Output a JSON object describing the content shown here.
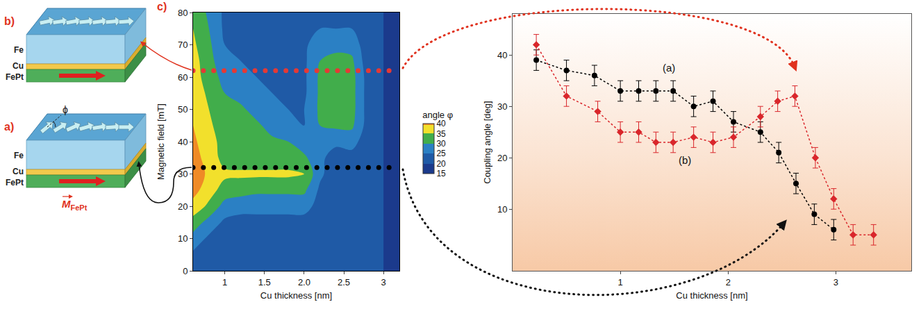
{
  "chart_data": [
    {
      "type": "contour",
      "panel_label": "c)",
      "x_label": "Cu thickness [nm]",
      "y_label": "Magnetic field [mT]",
      "x": [
        0.6,
        0.8,
        1.0,
        1.2,
        1.4,
        1.6,
        1.8,
        2.0,
        2.2,
        2.4,
        2.6,
        2.8,
        3.0,
        3.2
      ],
      "y": [
        0,
        5,
        10,
        15,
        20,
        25,
        30,
        35,
        40,
        45,
        50,
        55,
        60,
        65,
        70,
        75,
        80
      ],
      "z": [
        [
          22,
          22,
          22,
          22,
          22,
          22,
          22,
          22,
          22,
          22,
          22,
          21,
          20,
          20
        ],
        [
          24,
          22,
          22,
          22,
          22,
          22,
          22,
          22,
          22,
          22,
          22,
          21,
          20,
          20
        ],
        [
          28,
          24,
          22,
          22,
          22,
          22,
          22,
          22,
          22,
          22,
          22,
          21,
          20,
          20
        ],
        [
          33,
          28,
          24,
          23,
          23,
          23,
          23,
          23,
          22,
          22,
          22,
          21,
          20,
          20
        ],
        [
          38,
          34,
          28,
          27,
          27,
          27,
          27,
          27,
          23,
          22,
          22,
          21,
          20,
          20
        ],
        [
          42,
          37,
          33,
          32,
          31,
          31,
          31,
          31,
          24,
          22,
          22,
          21,
          20,
          20
        ],
        [
          43,
          39,
          36,
          36,
          36,
          36,
          36,
          35,
          26,
          22,
          22,
          21,
          20,
          20
        ],
        [
          42,
          38,
          33,
          32,
          32,
          32,
          32,
          31,
          26,
          23,
          23,
          21,
          20,
          20
        ],
        [
          41,
          37,
          33,
          32,
          32,
          31,
          30,
          27,
          27,
          26,
          27,
          22,
          20,
          20
        ],
        [
          40,
          36,
          32,
          32,
          31,
          28,
          26,
          25,
          30,
          31,
          31,
          23,
          20,
          20
        ],
        [
          39,
          35,
          31,
          31,
          28,
          26,
          25,
          25,
          31,
          32,
          32,
          23,
          20,
          20
        ],
        [
          38,
          34,
          30,
          28,
          26,
          25,
          24,
          24,
          31,
          32,
          32,
          23,
          20,
          20
        ],
        [
          37,
          33,
          28,
          26,
          25,
          24,
          24,
          24,
          31,
          32,
          32,
          23,
          20,
          20
        ],
        [
          37,
          32,
          26,
          25,
          24,
          24,
          24,
          24,
          30,
          31,
          31,
          22,
          20,
          20
        ],
        [
          36,
          31,
          25,
          24,
          24,
          24,
          24,
          24,
          28,
          29,
          28,
          22,
          20,
          20
        ],
        [
          35,
          30,
          24,
          23,
          23,
          23,
          23,
          23,
          25,
          25,
          25,
          22,
          20,
          20
        ],
        [
          34,
          29,
          24,
          23,
          23,
          23,
          23,
          23,
          24,
          24,
          24,
          22,
          20,
          20
        ]
      ],
      "colorbar_title": "angle φ",
      "colorbar_range": [
        15,
        40
      ],
      "colorbar_ticks": [
        15,
        20,
        25,
        30,
        35,
        40
      ],
      "colors": [
        "#1b3a8c",
        "#1f5aa6",
        "#2b80c4",
        "#41ad4b",
        "#f2e02c",
        "#ef8a26"
      ],
      "xlim": [
        0.6,
        3.2
      ],
      "xticks": [
        1,
        1.5,
        {
          "value": 2,
          "label": "2.0"
        },
        2.5,
        3
      ],
      "ylim": [
        0,
        80
      ],
      "yticks": [
        0,
        10,
        20,
        30,
        40,
        50,
        60,
        70,
        80
      ],
      "series": [
        {
          "type": "scatter",
          "marker": "circle",
          "color": "#e53935",
          "x": [
            0.6,
            0.73,
            0.86,
            0.99,
            1.12,
            1.25,
            1.38,
            1.51,
            1.64,
            1.77,
            1.9,
            2.03,
            2.16,
            2.29,
            2.42,
            2.55,
            2.68,
            2.81,
            2.94,
            3.07
          ],
          "y": [
            62,
            62,
            62,
            62,
            62,
            62,
            62,
            62,
            62,
            62,
            62,
            62,
            62,
            62,
            62,
            62,
            62,
            62,
            62,
            62
          ]
        },
        {
          "type": "scatter",
          "marker": "circle",
          "color": "#000000",
          "x": [
            0.6,
            0.73,
            0.86,
            0.99,
            1.12,
            1.25,
            1.38,
            1.51,
            1.64,
            1.77,
            1.9,
            2.03,
            2.16,
            2.29,
            2.42,
            2.55,
            2.68,
            2.81,
            2.94,
            3.07
          ],
          "y": [
            32,
            32,
            32,
            32,
            32,
            32,
            32,
            32,
            32,
            32,
            32,
            32,
            32,
            32,
            32,
            32,
            32,
            32,
            32,
            32
          ]
        }
      ]
    },
    {
      "type": "line",
      "x_label": "Cu thickness [nm]",
      "y_label": "Coupling angle [deg]",
      "xlim": [
        0,
        3.7
      ],
      "xticks": [
        1,
        2,
        3
      ],
      "ylim": [
        -2,
        48
      ],
      "yticks": [
        10,
        20,
        30,
        40
      ],
      "series": [
        {
          "color": "#000000",
          "marker": "circle",
          "line_style": "dotted",
          "x": [
            0.22,
            0.5,
            0.76,
            1.0,
            1.17,
            1.33,
            1.49,
            1.68,
            1.86,
            2.05,
            2.3,
            2.47,
            2.63,
            2.8,
            2.98
          ],
          "values": [
            39,
            37,
            36,
            33,
            33,
            33,
            33,
            30,
            31,
            27,
            25,
            21,
            15,
            9,
            6
          ],
          "errors": [
            2,
            2,
            2,
            2,
            2,
            2,
            2,
            2,
            2,
            2,
            2,
            2,
            2,
            2,
            2
          ]
        },
        {
          "color": "#d9262b",
          "marker": "diamond",
          "line_style": "dotted",
          "x": [
            0.22,
            0.5,
            0.79,
            1.0,
            1.17,
            1.33,
            1.49,
            1.68,
            1.86,
            2.05,
            2.3,
            2.46,
            2.62,
            2.81,
            2.98,
            3.16,
            3.35
          ],
          "values": [
            42,
            32,
            29,
            25,
            25,
            23,
            23,
            24,
            23,
            24,
            28,
            31,
            32,
            20,
            12,
            5,
            5
          ],
          "errors": [
            2,
            2,
            2,
            2,
            2,
            2,
            2,
            2,
            2,
            2,
            2,
            2,
            2,
            2,
            2,
            2,
            2
          ]
        }
      ],
      "annotations": [
        {
          "text": "(a)",
          "x": 1.45,
          "y": 37.5
        },
        {
          "text": "(b)",
          "x": 1.6,
          "y": 19.5
        }
      ]
    }
  ],
  "diagram": {
    "panels": [
      {
        "label": "b)",
        "layers": [
          "Fe",
          "Cu",
          "FePt"
        ]
      },
      {
        "label": "a)",
        "layers": [
          "Fe",
          "Cu",
          "FePt"
        ],
        "angle_label": "ϕ",
        "magnetization": {
          "symbol": "M",
          "subscript": "FePt"
        }
      }
    ]
  }
}
